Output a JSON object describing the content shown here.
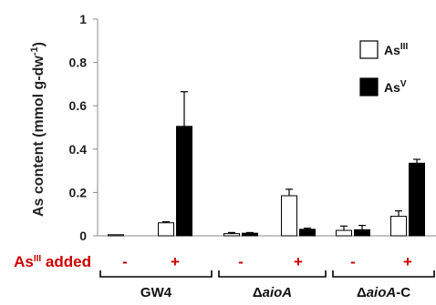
{
  "chart_data": {
    "type": "bar",
    "ylabel_main": "As content (mmol g-dw",
    "ylabel_sup": "-1",
    "ylabel_end": ")",
    "ylim": [
      0,
      1
    ],
    "yticks": [
      "0",
      "0.2",
      "0.4",
      "0.6",
      "0.8",
      "1"
    ],
    "ytick_values": [
      0,
      0.2,
      0.4,
      0.6,
      0.8,
      1
    ],
    "treatment_row_label_main": "As",
    "treatment_row_label_sup": "III",
    "treatment_row_label_end": " added",
    "categories": [
      {
        "group": "GW4",
        "treatment": "-"
      },
      {
        "group": "GW4",
        "treatment": "+"
      },
      {
        "group": "ΔaioA",
        "treatment": "-"
      },
      {
        "group": "ΔaioA",
        "treatment": "+"
      },
      {
        "group": "ΔaioA-C",
        "treatment": "-"
      },
      {
        "group": "ΔaioA-C",
        "treatment": "+"
      }
    ],
    "groups": [
      {
        "label_pre": "GW4",
        "label_italic": "",
        "label_post": ""
      },
      {
        "label_pre": "Δ",
        "label_italic": "aioA",
        "label_post": ""
      },
      {
        "label_pre": "Δ",
        "label_italic": "aioA",
        "label_post": "-C"
      }
    ],
    "series": [
      {
        "name_main": "As",
        "name_sup": "III",
        "color": "#ffffff",
        "stroke": "#000000",
        "values": [
          0.005,
          0.06,
          0.01,
          0.185,
          0.025,
          0.09
        ],
        "errors": [
          0.0,
          0.005,
          0.005,
          0.03,
          0.02,
          0.025
        ]
      },
      {
        "name_main": "As",
        "name_sup": "V",
        "color": "#000000",
        "stroke": "#000000",
        "values": [
          0.0,
          0.505,
          0.012,
          0.03,
          0.028,
          0.335
        ],
        "errors": [
          0.0,
          0.16,
          0.003,
          0.005,
          0.02,
          0.018
        ]
      }
    ],
    "legend_position": "top-right",
    "grid": false,
    "colors": {
      "sign": "#cc0000",
      "axis": "#888888",
      "bracket": "#000000"
    }
  }
}
